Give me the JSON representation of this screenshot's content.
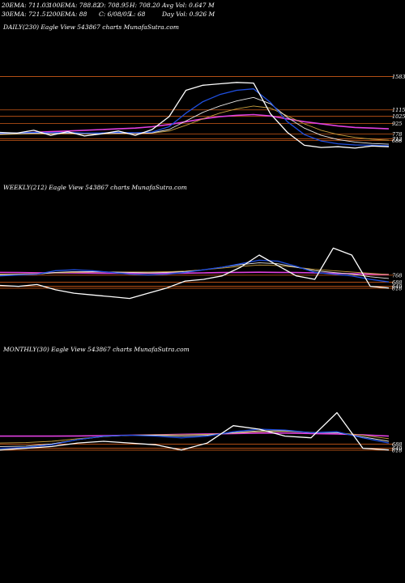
{
  "header": {
    "row1": [
      "20EMA: 711.03",
      "100EMA: 788.82",
      "O: 708.95",
      "H: 708.20",
      "Avg Vol: 0.647  M"
    ],
    "row2": [
      "30EMA: 721.51",
      "200EMA: 88",
      "C: 6/08/05",
      "L: 68",
      "Day Vol: 0.926  M"
    ]
  },
  "colors": {
    "price": "#ffffff",
    "ema_short": "#1f4fe0",
    "ema_mid": "#e8e8e8",
    "ema_long": "#c8a040",
    "ema_200": "#e040e0",
    "support": "#cc5a18"
  },
  "chart_data": [
    {
      "type": "line",
      "title": "DAILY(230) Eagle   View  543867 charts MunafaSutra.com",
      "price_labels": [
        "1583",
        "1115",
        "1025",
        "925",
        "778",
        "712",
        "688"
      ],
      "x": [
        0,
        10,
        20,
        30,
        40,
        50,
        60,
        70,
        80,
        90,
        100,
        110,
        120,
        130,
        140,
        150,
        160,
        170,
        180,
        190,
        200,
        210,
        220,
        230
      ],
      "series": [
        {
          "key": "price",
          "values": [
            800,
            790,
            830,
            760,
            810,
            750,
            780,
            820,
            760,
            840,
            1020,
            1390,
            1460,
            1480,
            1500,
            1490,
            1060,
            800,
            620,
            590,
            600,
            580,
            610,
            600
          ]
        },
        {
          "key": "ema_short",
          "values": [
            790,
            792,
            800,
            795,
            800,
            790,
            792,
            800,
            795,
            805,
            880,
            1070,
            1230,
            1330,
            1390,
            1410,
            1220,
            950,
            770,
            680,
            640,
            625,
            620,
            615
          ]
        },
        {
          "key": "ema_mid",
          "values": [
            780,
            784,
            790,
            788,
            790,
            785,
            786,
            790,
            788,
            795,
            840,
            960,
            1080,
            1170,
            1240,
            1290,
            1200,
            1010,
            860,
            760,
            700,
            665,
            645,
            635
          ]
        },
        {
          "key": "ema_long",
          "values": [
            770,
            775,
            780,
            780,
            782,
            780,
            780,
            785,
            785,
            790,
            820,
            900,
            990,
            1070,
            1130,
            1170,
            1140,
            1030,
            920,
            830,
            770,
            730,
            705,
            690
          ]
        },
        {
          "key": "ema_200",
          "values": [
            780,
            790,
            800,
            810,
            820,
            830,
            840,
            850,
            860,
            880,
            910,
            950,
            990,
            1020,
            1040,
            1050,
            1030,
            990,
            950,
            920,
            890,
            870,
            860,
            850
          ]
        }
      ],
      "supports": [
        1583,
        1115,
        1025,
        925,
        778,
        712,
        688
      ],
      "ylim": [
        500,
        2200
      ]
    },
    {
      "type": "line",
      "title": "WEEKLY(212) Eagle   View  543867 charts MunafaSutra.com",
      "price_labels": [
        "768",
        "688",
        "640",
        "618"
      ],
      "x": [
        0,
        10,
        20,
        30,
        40,
        50,
        60,
        70,
        80,
        90,
        100,
        110,
        120,
        130,
        140,
        150,
        160,
        170,
        180,
        190,
        200,
        210
      ],
      "series": [
        {
          "key": "price",
          "values": [
            650,
            640,
            660,
            600,
            560,
            540,
            520,
            500,
            560,
            620,
            700,
            720,
            760,
            860,
            1000,
            880,
            760,
            720,
            1080,
            1000,
            640,
            620
          ]
        },
        {
          "key": "ema_short",
          "values": [
            760,
            770,
            780,
            820,
            830,
            820,
            800,
            780,
            770,
            780,
            800,
            830,
            860,
            900,
            940,
            930,
            870,
            800,
            780,
            760,
            720,
            690
          ]
        },
        {
          "key": "ema_mid",
          "values": [
            770,
            775,
            780,
            800,
            810,
            810,
            805,
            800,
            795,
            800,
            810,
            830,
            860,
            890,
            910,
            900,
            860,
            820,
            800,
            780,
            750,
            730
          ]
        },
        {
          "key": "ema_long",
          "values": [
            780,
            782,
            785,
            795,
            800,
            805,
            805,
            805,
            805,
            808,
            815,
            830,
            850,
            870,
            885,
            880,
            860,
            835,
            820,
            805,
            790,
            775
          ]
        },
        {
          "key": "ema_200",
          "values": [
            800,
            798,
            796,
            795,
            794,
            792,
            790,
            790,
            790,
            790,
            792,
            795,
            798,
            800,
            802,
            800,
            798,
            795,
            790,
            785,
            780,
            775
          ]
        }
      ],
      "supports": [
        768,
        688,
        640,
        618
      ],
      "ylim": [
        300,
        1700
      ]
    },
    {
      "type": "line",
      "title": "MONTHLY(30) Eagle   View  543867 charts MunafaSutra.com",
      "price_labels": [
        "688",
        "640",
        "618"
      ],
      "x": [
        0,
        2,
        4,
        6,
        8,
        10,
        12,
        14,
        16,
        18,
        20,
        22,
        24,
        26,
        28,
        30
      ],
      "series": [
        {
          "key": "price",
          "values": [
            620,
            640,
            660,
            700,
            720,
            700,
            680,
            620,
            700,
            900,
            860,
            780,
            760,
            1050,
            640,
            620
          ]
        },
        {
          "key": "ema_short",
          "values": [
            640,
            650,
            680,
            740,
            780,
            790,
            780,
            760,
            780,
            830,
            860,
            850,
            820,
            830,
            760,
            700
          ]
        },
        {
          "key": "ema_mid",
          "values": [
            660,
            665,
            690,
            740,
            775,
            790,
            790,
            780,
            790,
            820,
            840,
            840,
            820,
            820,
            770,
            720
          ]
        },
        {
          "key": "ema_long",
          "values": [
            700,
            705,
            720,
            750,
            775,
            790,
            795,
            795,
            800,
            815,
            830,
            835,
            825,
            820,
            790,
            750
          ]
        },
        {
          "key": "ema_200",
          "values": [
            780,
            780,
            780,
            782,
            785,
            790,
            795,
            800,
            805,
            810,
            815,
            815,
            810,
            805,
            795,
            780
          ]
        }
      ],
      "supports": [
        688,
        640,
        618
      ],
      "ylim": [
        300,
        1700
      ]
    }
  ]
}
